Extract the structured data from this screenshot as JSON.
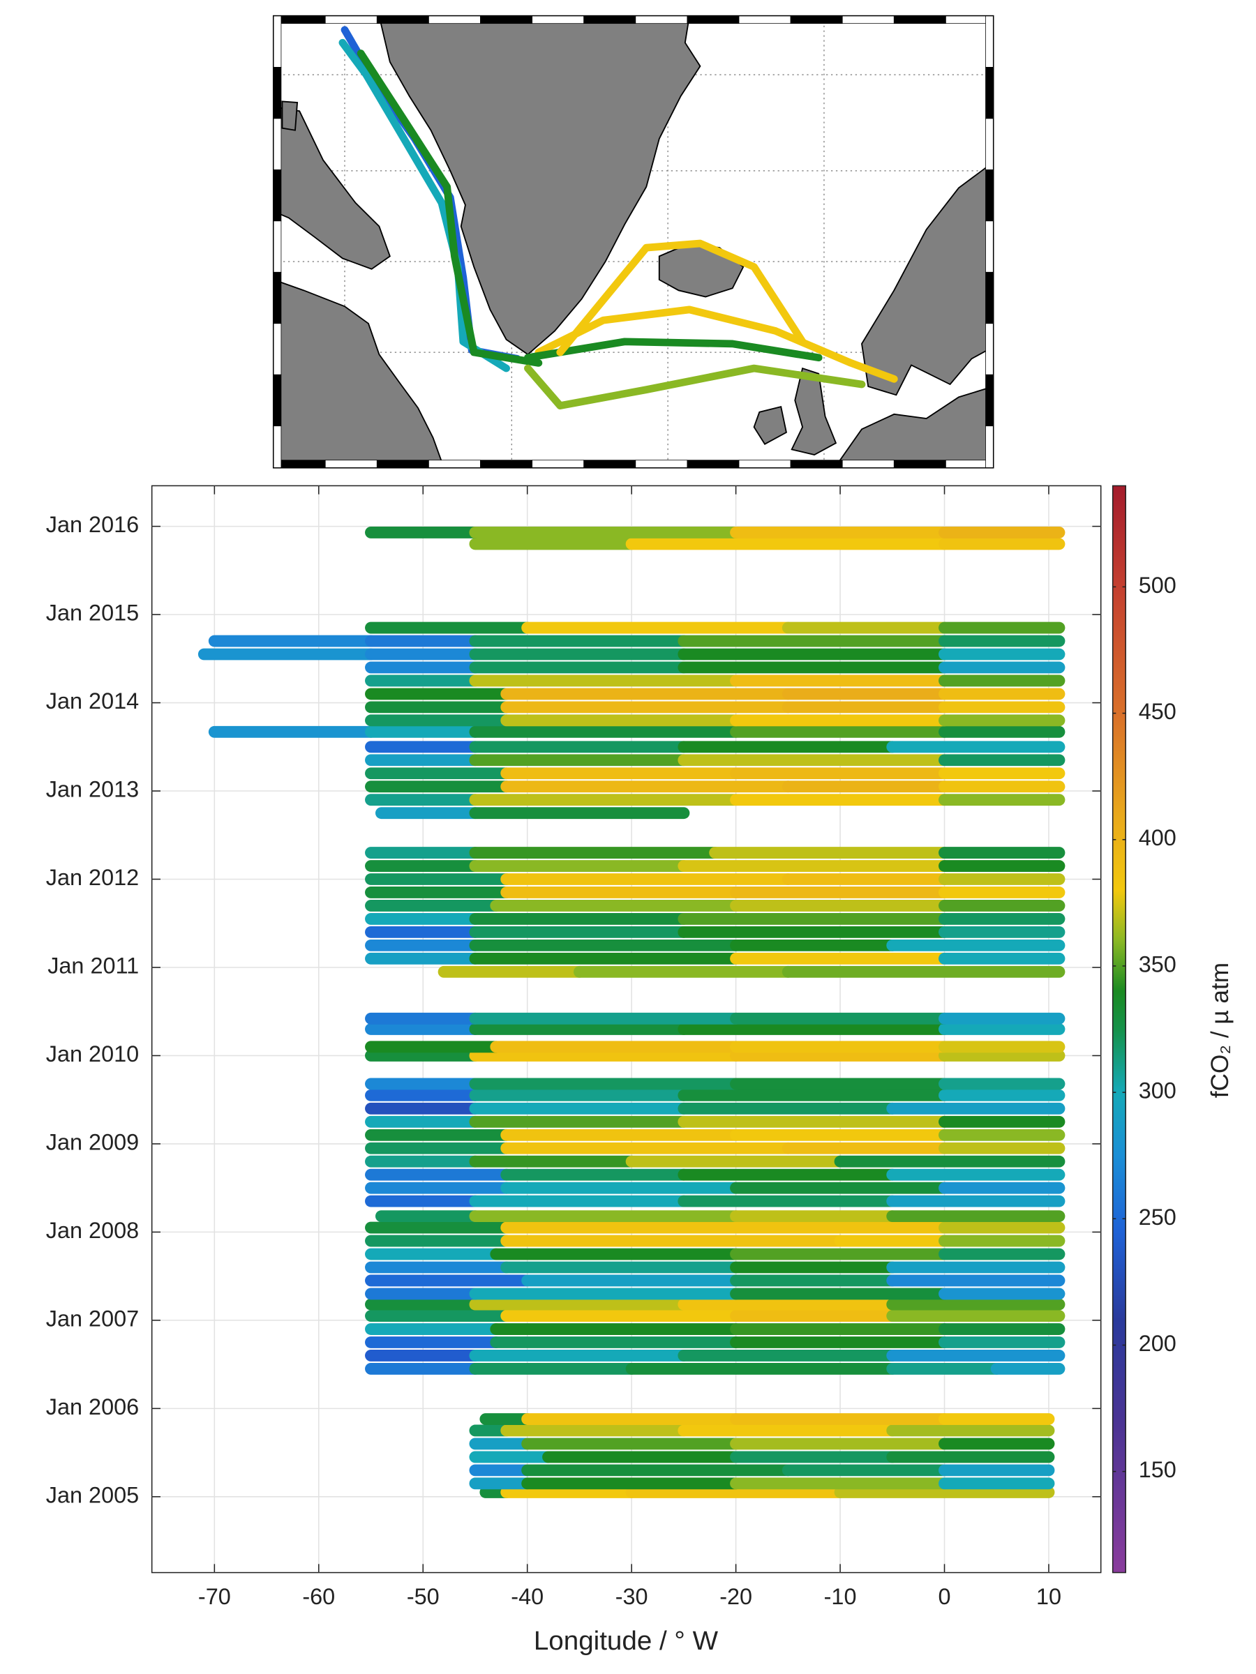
{
  "chart_data": {
    "type": "scatter",
    "xlabel": "Longitude / ° W",
    "clabel": "fCO₂ / µ atm",
    "xlim": [
      -76,
      15
    ],
    "xticks": [
      -70,
      -60,
      -50,
      -40,
      -30,
      -20,
      -10,
      0,
      10
    ],
    "ylim": [
      2004.14,
      2016.46
    ],
    "yticks": [
      {
        "value": 2005,
        "label": "Jan 2005"
      },
      {
        "value": 2006,
        "label": "Jan 2006"
      },
      {
        "value": 2007,
        "label": "Jan 2007"
      },
      {
        "value": 2008,
        "label": "Jan 2008"
      },
      {
        "value": 2009,
        "label": "Jan 2009"
      },
      {
        "value": 2010,
        "label": "Jan 2010"
      },
      {
        "value": 2011,
        "label": "Jan 2011"
      },
      {
        "value": 2012,
        "label": "Jan 2012"
      },
      {
        "value": 2013,
        "label": "Jan 2013"
      },
      {
        "value": 2014,
        "label": "Jan 2014"
      },
      {
        "value": 2015,
        "label": "Jan 2015"
      },
      {
        "value": 2016,
        "label": "Jan 2016"
      }
    ],
    "clim": [
      110,
      540
    ],
    "cticks": [
      150,
      200,
      250,
      300,
      350,
      400,
      450,
      500
    ],
    "grid": true,
    "colormap": [
      {
        "value": 110,
        "color": "#8a3c9c"
      },
      {
        "value": 170,
        "color": "#4a3494"
      },
      {
        "value": 210,
        "color": "#2a3a9c"
      },
      {
        "value": 245,
        "color": "#1f62d6"
      },
      {
        "value": 275,
        "color": "#1b8fd6"
      },
      {
        "value": 300,
        "color": "#15a9b8"
      },
      {
        "value": 325,
        "color": "#15924a"
      },
      {
        "value": 340,
        "color": "#1a8a22"
      },
      {
        "value": 360,
        "color": "#8ab824"
      },
      {
        "value": 380,
        "color": "#f2c80e"
      },
      {
        "value": 410,
        "color": "#e8a81c"
      },
      {
        "value": 450,
        "color": "#d9702a"
      },
      {
        "value": 500,
        "color": "#c44030"
      },
      {
        "value": 540,
        "color": "#a41c2c"
      }
    ],
    "tracks": [
      {
        "time": 2005.05,
        "lon": [
          -44,
          -42,
          -30,
          -10,
          10
        ],
        "values": [
          330,
          380,
          385,
          370
        ]
      },
      {
        "time": 2005.15,
        "lon": [
          -45,
          -40,
          -20,
          0,
          10
        ],
        "values": [
          290,
          340,
          360,
          300
        ]
      },
      {
        "time": 2005.3,
        "lon": [
          -45,
          -40,
          -15,
          0,
          10
        ],
        "values": [
          270,
          330,
          320,
          290
        ]
      },
      {
        "time": 2005.45,
        "lon": [
          -45,
          -38,
          -20,
          -5,
          10
        ],
        "values": [
          300,
          340,
          320,
          330
        ]
      },
      {
        "time": 2005.6,
        "lon": [
          -45,
          -40,
          -20,
          0,
          10
        ],
        "values": [
          290,
          350,
          365,
          340
        ]
      },
      {
        "time": 2005.75,
        "lon": [
          -45,
          -42,
          -25,
          -5,
          10
        ],
        "values": [
          320,
          370,
          380,
          365
        ]
      },
      {
        "time": 2005.88,
        "lon": [
          -44,
          -40,
          -20,
          0,
          10
        ],
        "values": [
          330,
          385,
          390,
          380
        ]
      },
      {
        "time": 2006.45,
        "lon": [
          -55,
          -45,
          -30,
          -5,
          5,
          11
        ],
        "values": [
          260,
          320,
          330,
          310,
          290
        ]
      },
      {
        "time": 2006.6,
        "lon": [
          -55,
          -45,
          -25,
          -5,
          11
        ],
        "values": [
          240,
          300,
          320,
          280
        ]
      },
      {
        "time": 2006.75,
        "lon": [
          -55,
          -43,
          -20,
          0,
          11
        ],
        "values": [
          250,
          320,
          340,
          310
        ]
      },
      {
        "time": 2006.9,
        "lon": [
          -55,
          -43,
          -20,
          0,
          11
        ],
        "values": [
          300,
          340,
          345,
          330
        ]
      },
      {
        "time": 2007.05,
        "lon": [
          -55,
          -42,
          -20,
          -5,
          11
        ],
        "values": [
          320,
          380,
          390,
          360
        ]
      },
      {
        "time": 2007.18,
        "lon": [
          -55,
          -45,
          -25,
          -5,
          11
        ],
        "values": [
          330,
          370,
          385,
          350
        ]
      },
      {
        "time": 2007.3,
        "lon": [
          -55,
          -45,
          -20,
          0,
          11
        ],
        "values": [
          260,
          300,
          330,
          280
        ]
      },
      {
        "time": 2007.45,
        "lon": [
          -55,
          -40,
          -20,
          -5,
          11
        ],
        "values": [
          250,
          290,
          320,
          270
        ]
      },
      {
        "time": 2007.6,
        "lon": [
          -55,
          -42,
          -20,
          -5,
          11
        ],
        "values": [
          270,
          310,
          340,
          290
        ]
      },
      {
        "time": 2007.75,
        "lon": [
          -55,
          -43,
          -20,
          0,
          11
        ],
        "values": [
          300,
          340,
          350,
          320
        ]
      },
      {
        "time": 2007.9,
        "lon": [
          -55,
          -42,
          -10,
          0,
          11
        ],
        "values": [
          320,
          385,
          380,
          360
        ]
      },
      {
        "time": 2008.05,
        "lon": [
          -55,
          -42,
          -15,
          0,
          11
        ],
        "values": [
          330,
          385,
          385,
          370
        ]
      },
      {
        "time": 2008.18,
        "lon": [
          -54,
          -45,
          -20,
          -5,
          11
        ],
        "values": [
          320,
          360,
          370,
          350
        ]
      },
      {
        "time": 2008.35,
        "lon": [
          -55,
          -45,
          -25,
          -5,
          11
        ],
        "values": [
          250,
          300,
          320,
          290
        ]
      },
      {
        "time": 2008.5,
        "lon": [
          -55,
          -42,
          -20,
          0,
          11
        ],
        "values": [
          270,
          300,
          330,
          280
        ]
      },
      {
        "time": 2008.65,
        "lon": [
          -55,
          -42,
          -25,
          -5,
          11
        ],
        "values": [
          260,
          320,
          340,
          300
        ]
      },
      {
        "time": 2008.8,
        "lon": [
          -55,
          -45,
          -30,
          -10,
          11
        ],
        "values": [
          310,
          345,
          370,
          330
        ]
      },
      {
        "time": 2008.95,
        "lon": [
          -55,
          -42,
          -15,
          0,
          11
        ],
        "values": [
          320,
          385,
          390,
          370
        ]
      },
      {
        "time": 2009.1,
        "lon": [
          -55,
          -42,
          -20,
          0,
          11
        ],
        "values": [
          330,
          385,
          380,
          360
        ]
      },
      {
        "time": 2009.25,
        "lon": [
          -55,
          -45,
          -25,
          0,
          11
        ],
        "values": [
          300,
          350,
          370,
          340
        ]
      },
      {
        "time": 2009.4,
        "lon": [
          -55,
          -45,
          -25,
          -5,
          11
        ],
        "values": [
          230,
          300,
          320,
          290
        ]
      },
      {
        "time": 2009.55,
        "lon": [
          -55,
          -45,
          -25,
          0,
          11
        ],
        "values": [
          250,
          310,
          330,
          300
        ]
      },
      {
        "time": 2009.68,
        "lon": [
          -55,
          -45,
          -20,
          0,
          11
        ],
        "values": [
          270,
          320,
          330,
          310
        ]
      },
      {
        "time": 2010.0,
        "lon": [
          -55,
          -45,
          -20,
          0,
          11
        ],
        "values": [
          330,
          385,
          390,
          370
        ]
      },
      {
        "time": 2010.1,
        "lon": [
          -55,
          -43,
          -20,
          0,
          11
        ],
        "values": [
          340,
          390,
          385,
          375
        ]
      },
      {
        "time": 2010.3,
        "lon": [
          -55,
          -45,
          -25,
          0,
          11
        ],
        "values": [
          270,
          330,
          340,
          300
        ]
      },
      {
        "time": 2010.42,
        "lon": [
          -55,
          -45,
          -20,
          0,
          11
        ],
        "values": [
          260,
          310,
          320,
          290
        ]
      },
      {
        "time": 2010.95,
        "lon": [
          -48,
          -35,
          -15,
          11
        ],
        "values": [
          370,
          360,
          355
        ]
      },
      {
        "time": 2011.1,
        "lon": [
          -55,
          -45,
          -20,
          0,
          11
        ],
        "values": [
          290,
          340,
          380,
          300
        ]
      },
      {
        "time": 2011.25,
        "lon": [
          -55,
          -45,
          -20,
          -5,
          11
        ],
        "values": [
          270,
          330,
          340,
          300
        ]
      },
      {
        "time": 2011.4,
        "lon": [
          -55,
          -45,
          -25,
          0,
          11
        ],
        "values": [
          250,
          320,
          340,
          310
        ]
      },
      {
        "time": 2011.55,
        "lon": [
          -55,
          -45,
          -25,
          0,
          11
        ],
        "values": [
          300,
          330,
          350,
          320
        ]
      },
      {
        "time": 2011.7,
        "lon": [
          -55,
          -43,
          -20,
          0,
          11
        ],
        "values": [
          320,
          360,
          370,
          350
        ]
      },
      {
        "time": 2011.85,
        "lon": [
          -55,
          -42,
          -20,
          0,
          11
        ],
        "values": [
          330,
          390,
          395,
          380
        ]
      },
      {
        "time": 2012.0,
        "lon": [
          -55,
          -42,
          -15,
          0,
          11
        ],
        "values": [
          320,
          385,
          390,
          370
        ]
      },
      {
        "time": 2012.15,
        "lon": [
          -55,
          -45,
          -25,
          0,
          11
        ],
        "values": [
          330,
          360,
          375,
          340
        ]
      },
      {
        "time": 2012.3,
        "lon": [
          -55,
          -45,
          -22,
          0,
          11
        ],
        "values": [
          310,
          345,
          370,
          330
        ]
      },
      {
        "time": 2012.75,
        "lon": [
          -54,
          -45,
          -25
        ],
        "values": [
          290,
          330
        ]
      },
      {
        "time": 2012.9,
        "lon": [
          -55,
          -45,
          -20,
          0,
          11
        ],
        "values": [
          310,
          370,
          380,
          360
        ]
      },
      {
        "time": 2013.05,
        "lon": [
          -55,
          -42,
          -15,
          0,
          11
        ],
        "values": [
          330,
          395,
          400,
          385
        ]
      },
      {
        "time": 2013.2,
        "lon": [
          -55,
          -42,
          -20,
          0,
          11
        ],
        "values": [
          320,
          390,
          395,
          380
        ]
      },
      {
        "time": 2013.35,
        "lon": [
          -55,
          -45,
          -25,
          0,
          11
        ],
        "values": [
          290,
          350,
          370,
          320
        ]
      },
      {
        "time": 2013.5,
        "lon": [
          -55,
          -45,
          -25,
          -5,
          11
        ],
        "values": [
          250,
          320,
          340,
          300
        ]
      },
      {
        "time": 2013.67,
        "lon": [
          -70,
          -55,
          -45,
          -20,
          0,
          11
        ],
        "values": [
          280,
          300,
          330,
          350,
          330
        ]
      },
      {
        "time": 2013.8,
        "lon": [
          -55,
          -42,
          -20,
          0,
          11
        ],
        "values": [
          320,
          370,
          380,
          360
        ]
      },
      {
        "time": 2013.95,
        "lon": [
          -55,
          -42,
          -15,
          0,
          11
        ],
        "values": [
          330,
          395,
          400,
          385
        ]
      },
      {
        "time": 2014.1,
        "lon": [
          -55,
          -42,
          -15,
          0,
          11
        ],
        "values": [
          340,
          400,
          405,
          390
        ]
      },
      {
        "time": 2014.25,
        "lon": [
          -55,
          -45,
          -20,
          0,
          11
        ],
        "values": [
          310,
          370,
          390,
          350
        ]
      },
      {
        "time": 2014.4,
        "lon": [
          -55,
          -45,
          -25,
          0,
          11
        ],
        "values": [
          270,
          320,
          340,
          290
        ]
      },
      {
        "time": 2014.55,
        "lon": [
          -71,
          -55,
          -45,
          -25,
          0,
          11
        ],
        "values": [
          280,
          270,
          320,
          340,
          300
        ]
      },
      {
        "time": 2014.7,
        "lon": [
          -70,
          -55,
          -45,
          -25,
          0,
          11
        ],
        "values": [
          270,
          260,
          320,
          350,
          320
        ]
      },
      {
        "time": 2014.85,
        "lon": [
          -55,
          -40,
          -15,
          0,
          11
        ],
        "values": [
          330,
          380,
          370,
          350
        ]
      },
      {
        "time": 2015.8,
        "lon": [
          -45,
          -30,
          0,
          11
        ],
        "values": [
          360,
          380,
          385
        ]
      },
      {
        "time": 2015.93,
        "lon": [
          -55,
          -45,
          -20,
          0,
          11
        ],
        "values": [
          330,
          360,
          390,
          400
        ]
      }
    ]
  }
}
